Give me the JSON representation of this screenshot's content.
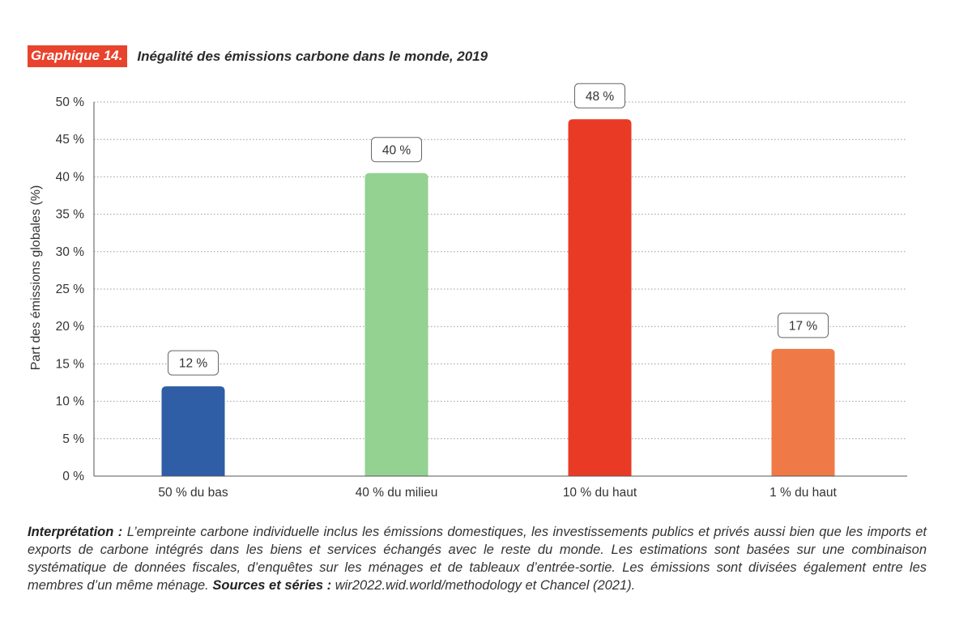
{
  "header": {
    "badge": "Graphique 14.",
    "title": "Inégalité des émissions carbone dans le monde, 2019"
  },
  "chart_data": {
    "type": "bar",
    "title": "Inégalité des émissions carbone dans le monde, 2019",
    "xlabel": "",
    "ylabel": "Part des émissions globales (%)",
    "ylim": [
      0,
      50
    ],
    "yticks": [
      0,
      5,
      10,
      15,
      20,
      25,
      30,
      35,
      40,
      45,
      50
    ],
    "ytick_labels": [
      "0 %",
      "5 %",
      "10 %",
      "15 %",
      "20 %",
      "25 %",
      "30 %",
      "35 %",
      "40 %",
      "45 %",
      "50 %"
    ],
    "grid": true,
    "categories": [
      "50 % du bas",
      "40 % du milieu",
      "10 % du haut",
      "1 % du haut"
    ],
    "values": [
      12,
      40.5,
      47.7,
      17
    ],
    "data_labels": [
      "12 %",
      "40 %",
      "48 %",
      "17 %"
    ],
    "colors": [
      "#2f5da6",
      "#93d291",
      "#e93a26",
      "#ef7a48"
    ]
  },
  "note": {
    "interp_label": "Interprétation :",
    "interp_text": " L’empreinte carbone individuelle inclus les émissions domestiques, les investissements publics et privés aussi bien que les imports et exports de carbone intégrés dans les biens et services échangés avec le reste du monde. Les estimations sont basées sur une combinaison systématique de données fiscales, d’enquêtes sur les ménages et de tableaux d’entrée-sortie. Les émissions sont divisées également entre les membres d’un même ménage. ",
    "sources_label": "Sources et séries :",
    "sources_text": " wir2022.wid.world/methodology et Chancel (2021)."
  }
}
